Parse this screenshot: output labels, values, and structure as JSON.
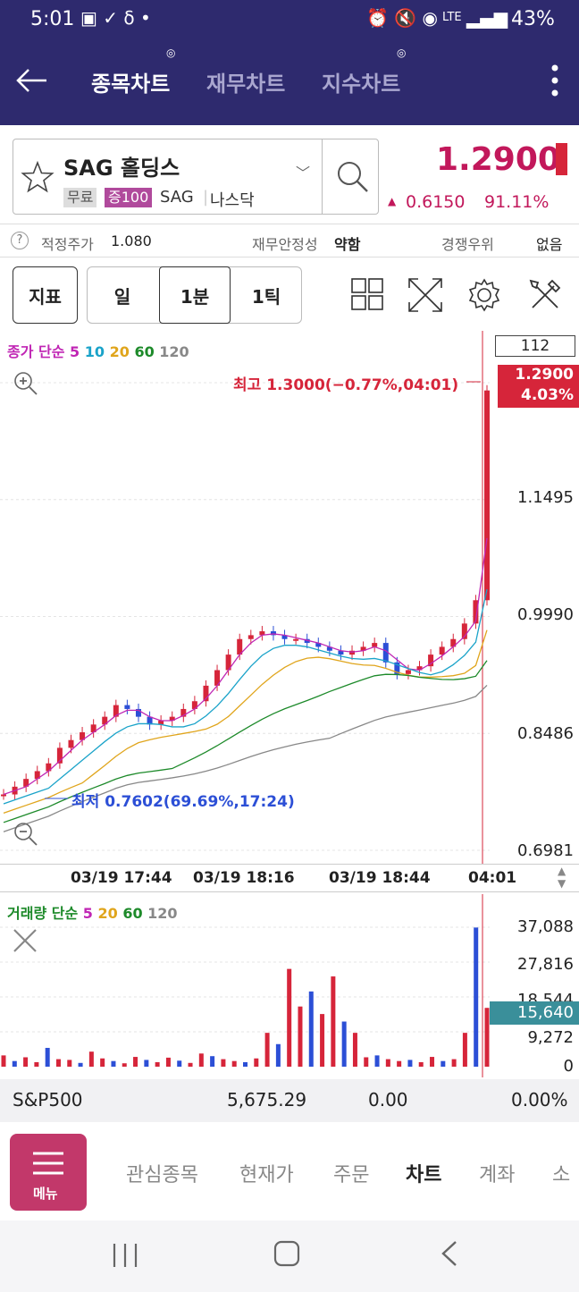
{
  "status": {
    "time": "5:01",
    "battery": "43%",
    "net": "LTE"
  },
  "nav": {
    "tabs": [
      "종목차트",
      "재무차트",
      "지수차트"
    ],
    "active": 0
  },
  "stock": {
    "name": "SAG 홀딩스",
    "tags": [
      "무료",
      "증100",
      "SAG",
      "나스닥"
    ],
    "price": "1.2900",
    "change": "0.6150",
    "change_pct": "91.11%"
  },
  "info": {
    "fair_label": "적정주가",
    "fair_value": "1.080",
    "stability_label": "재무안정성",
    "stability_value": "약함",
    "competition_label": "경쟁우위",
    "competition_value": "없음"
  },
  "toolbar": {
    "indicator": "지표",
    "day": "일",
    "min1": "1분",
    "tick1": "1틱"
  },
  "chart_data": {
    "type": "candlestick",
    "legend": {
      "label": "종가 단순",
      "periods": [
        "5",
        "10",
        "20",
        "60",
        "120"
      ],
      "colors": [
        "#c026b4",
        "#1aa3c9",
        "#e0a51c",
        "#1d8a2a",
        "#888888"
      ]
    },
    "y_ticks": [
      "1.1495",
      "0.9990",
      "0.8486",
      "0.6981"
    ],
    "x_ticks": [
      "03/19 17:44",
      "03/19 18:16",
      "03/19 18:44",
      "04:01"
    ],
    "box_value": "112",
    "current": {
      "price": "1.2900",
      "pct": "4.03%"
    },
    "high_label": "최고 1.3000(−0.77%,04:01)",
    "low_label": "최저 0.7602(69.69%,17:24)",
    "ylim": [
      0.6981,
      1.3
    ]
  },
  "volume": {
    "legend": {
      "label": "거래량 단순",
      "periods": [
        "5",
        "20",
        "60",
        "120"
      ],
      "colors": [
        "#c026b4",
        "#e0a51c",
        "#1d8a2a",
        "#888888"
      ]
    },
    "y_ticks": [
      "37,088",
      "27,816",
      "18,544",
      "9,272",
      "0"
    ],
    "current": "15,640"
  },
  "sp": {
    "name": "S&P500",
    "value": "5,675.29",
    "change": "0.00",
    "pct": "0.00%"
  },
  "bottom": {
    "menu": "메뉴",
    "items": [
      "관심종목",
      "현재가",
      "주문",
      "차트",
      "계좌",
      "소"
    ],
    "active": 3
  },
  "colors": {
    "header": "#2e2a6e",
    "up": "#d6253a",
    "down": "#2c4fd6",
    "accent": "#c2185b"
  }
}
